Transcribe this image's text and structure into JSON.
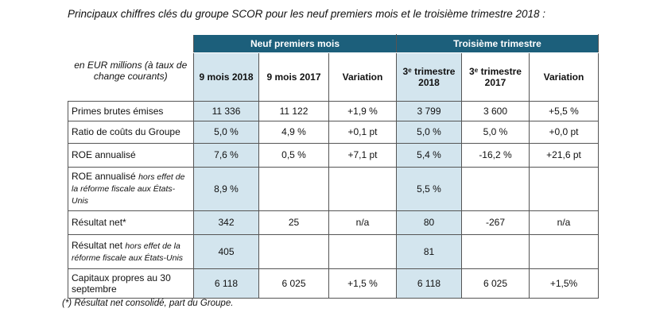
{
  "title": "Principaux chiffres clés du groupe SCOR pour les neuf premiers mois et le troisième trimestre 2018 :",
  "table": {
    "groups": [
      "Neuf premiers mois",
      "Troisième trimestre"
    ],
    "label_header": "en EUR millions (à taux de change courants)",
    "columns": [
      "9 mois 2018",
      "9 mois 2017",
      "Variation",
      "3ᵉ trimestre 2018",
      "3ᵉ trimestre 2017",
      "Variation"
    ],
    "rows": [
      {
        "label": "Primes brutes émises",
        "cells": [
          "11 336",
          "11 122",
          "+1,9 %",
          "3 799",
          "3 600",
          "+5,5 %"
        ]
      },
      {
        "label": "Ratio de coûts du Groupe",
        "cells": [
          "5,0 %",
          "4,9 %",
          "+0,1 pt",
          "5,0 %",
          "5,0 %",
          "+0,0 pt"
        ]
      },
      {
        "label": "ROE annualisé",
        "cells": [
          "7,6 %",
          "0,5 %",
          "+7,1 pt",
          "5,4 %",
          "-16,2 %",
          "+21,6 pt"
        ]
      },
      {
        "label": "ROE annualisé",
        "note": "hors effet de la réforme fiscale aux États-Unis",
        "cells": [
          "8,9 %",
          null,
          null,
          "5,5 %",
          null,
          null
        ]
      },
      {
        "label": "Résultat net*",
        "cells": [
          "342",
          "25",
          "n/a",
          "80",
          "-267",
          "n/a"
        ]
      },
      {
        "label": "Résultat net",
        "note": "hors effet de la réforme fiscale aux États-Unis",
        "cells": [
          "405",
          null,
          null,
          "81",
          null,
          null
        ]
      },
      {
        "label": "Capitaux propres au 30 septembre",
        "cells": [
          "6 118",
          "6 025",
          "+1,5 %",
          "6 118",
          "6 025",
          "+1,5%"
        ]
      }
    ]
  },
  "footnote": "(*) Résultat net consolidé, part du Groupe."
}
